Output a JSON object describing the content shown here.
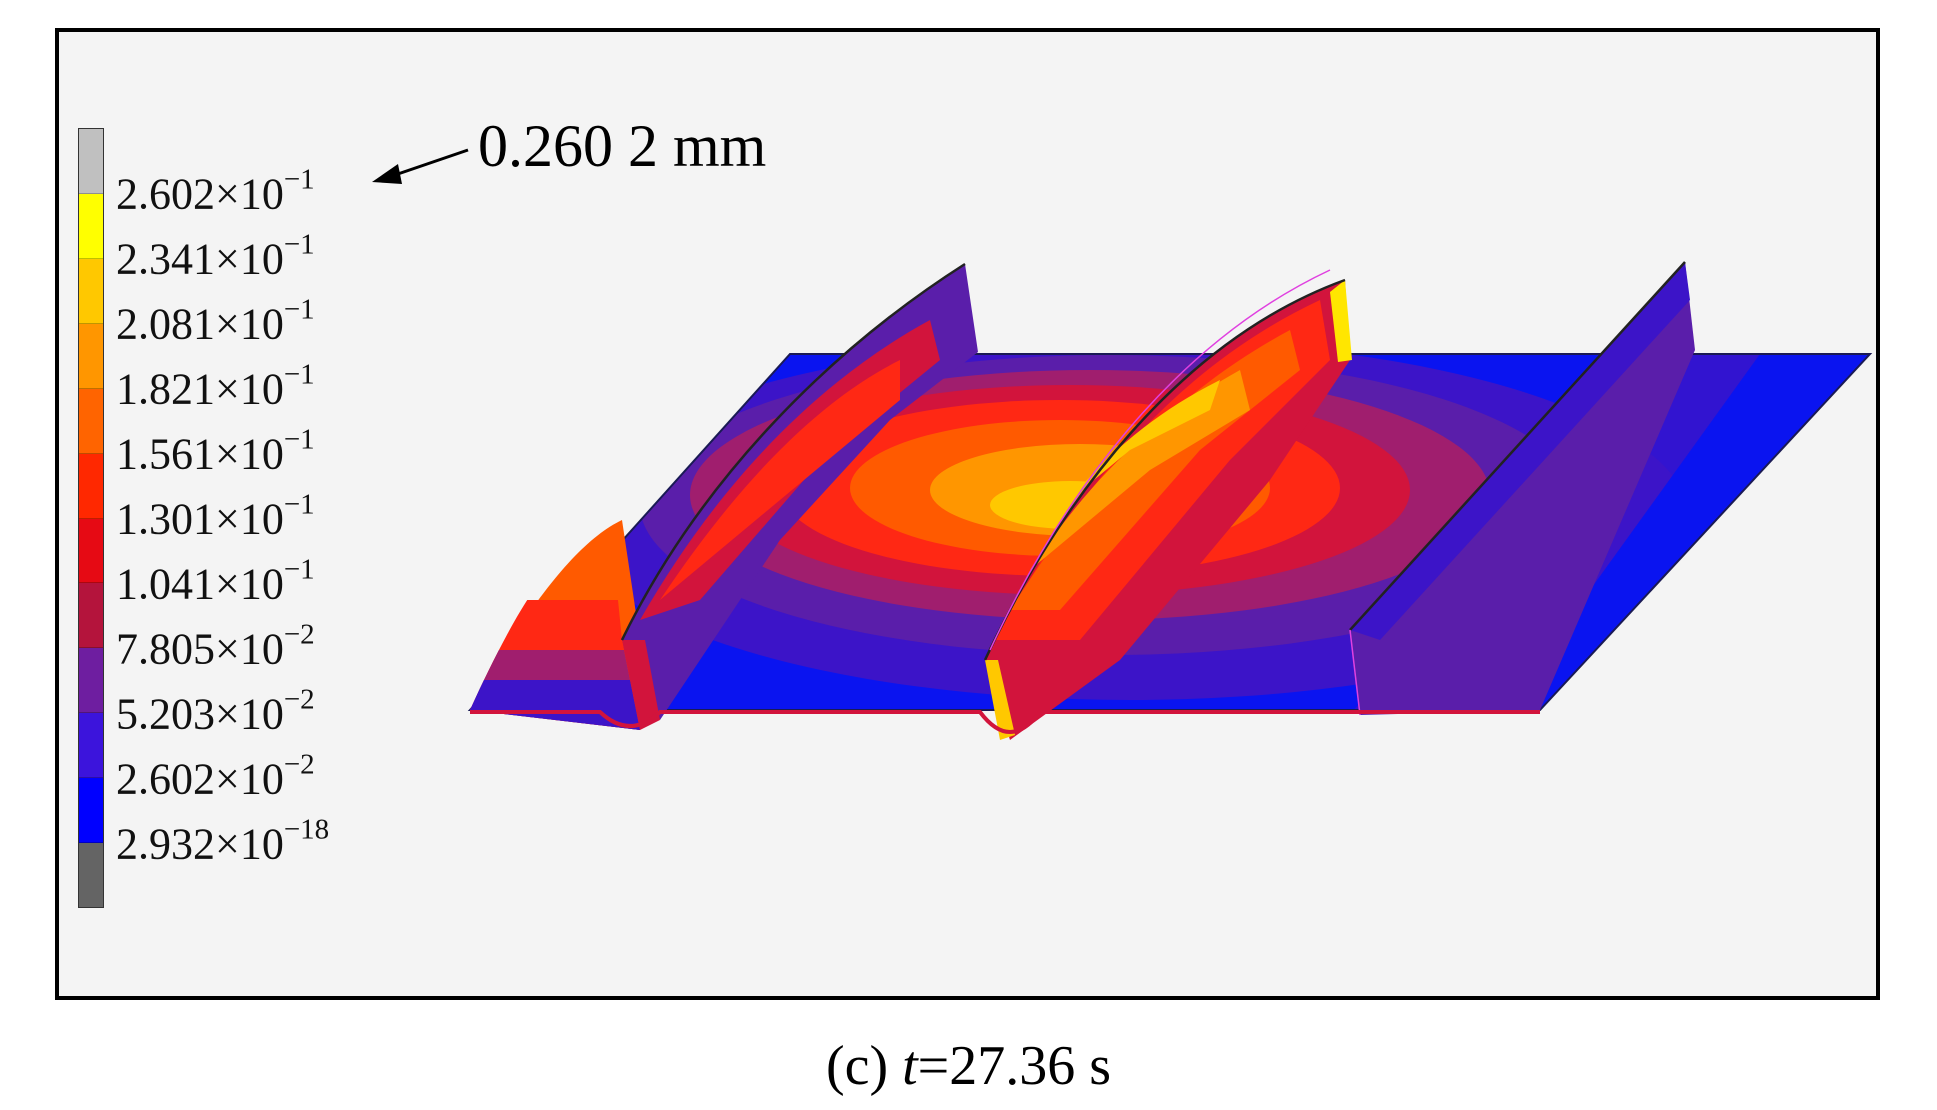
{
  "figure": {
    "caption_label": "(c) ",
    "caption_var": "t",
    "caption_value": "=27.36 s",
    "max_annotation": "0.260 2 mm"
  },
  "legend": {
    "ticks": [
      {
        "mantissa": "2.602",
        "exponent": "−1"
      },
      {
        "mantissa": "2.341",
        "exponent": "−1"
      },
      {
        "mantissa": "2.081",
        "exponent": "−1"
      },
      {
        "mantissa": "1.821",
        "exponent": "−1"
      },
      {
        "mantissa": "1.561",
        "exponent": "−1"
      },
      {
        "mantissa": "1.301",
        "exponent": "−1"
      },
      {
        "mantissa": "1.041",
        "exponent": "−1"
      },
      {
        "mantissa": "7.805",
        "exponent": "−2"
      },
      {
        "mantissa": "5.203",
        "exponent": "−2"
      },
      {
        "mantissa": "2.602",
        "exponent": "−2"
      },
      {
        "mantissa": "2.932",
        "exponent": "−18"
      }
    ],
    "times_symbol": "×10",
    "colors_top_to_bottom": [
      "#c0c0c0",
      "#ffff00",
      "#ffc800",
      "#ff9600",
      "#ff6400",
      "#ff2800",
      "#e60a14",
      "#b4143c",
      "#6e1ea0",
      "#3c14dc",
      "#0000ff",
      "#646464"
    ]
  },
  "contour_colors": {
    "blue": "#0a14f0",
    "indigo": "#3c14c8",
    "purple": "#5a1eaa",
    "magenta": "#a01e6e",
    "crimson": "#d2143c",
    "red": "#ff2814",
    "orange_red": "#ff5a00",
    "orange": "#ff9600",
    "amber": "#ffc800",
    "yellow": "#ffe600"
  }
}
